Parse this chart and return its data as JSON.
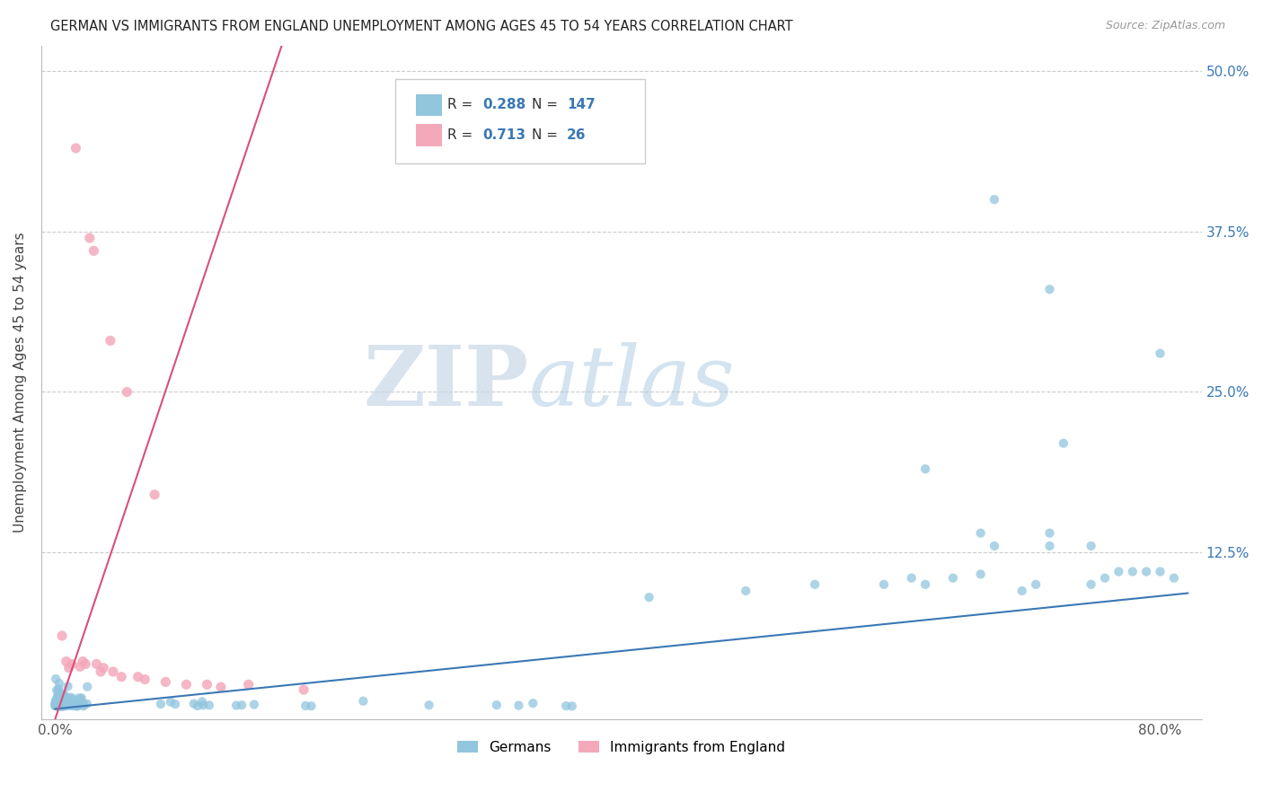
{
  "title": "GERMAN VS IMMIGRANTS FROM ENGLAND UNEMPLOYMENT AMONG AGES 45 TO 54 YEARS CORRELATION CHART",
  "source": "Source: ZipAtlas.com",
  "ylabel": "Unemployment Among Ages 45 to 54 years",
  "xlim": [
    -0.01,
    0.83
  ],
  "ylim": [
    -0.005,
    0.52
  ],
  "xticks": [
    0.0,
    0.8
  ],
  "xticklabels": [
    "0.0%",
    "80.0%"
  ],
  "ytick_vals": [
    0.0,
    0.125,
    0.25,
    0.375,
    0.5
  ],
  "ytick_labels_right": [
    "",
    "12.5%",
    "25.0%",
    "37.5%",
    "50.0%"
  ],
  "german_color": "#92c5de",
  "england_color": "#f4a9bb",
  "german_line_color": "#3a78b5",
  "england_line_color": "#d94f7a",
  "german_R": 0.288,
  "german_N": 147,
  "england_R": 0.713,
  "england_N": 26,
  "watermark_zip": "ZIP",
  "watermark_atlas": "atlas",
  "background_color": "#ffffff",
  "grid_color": "#cccccc",
  "legend_label_1": "Germans",
  "legend_label_2": "Immigrants from England"
}
